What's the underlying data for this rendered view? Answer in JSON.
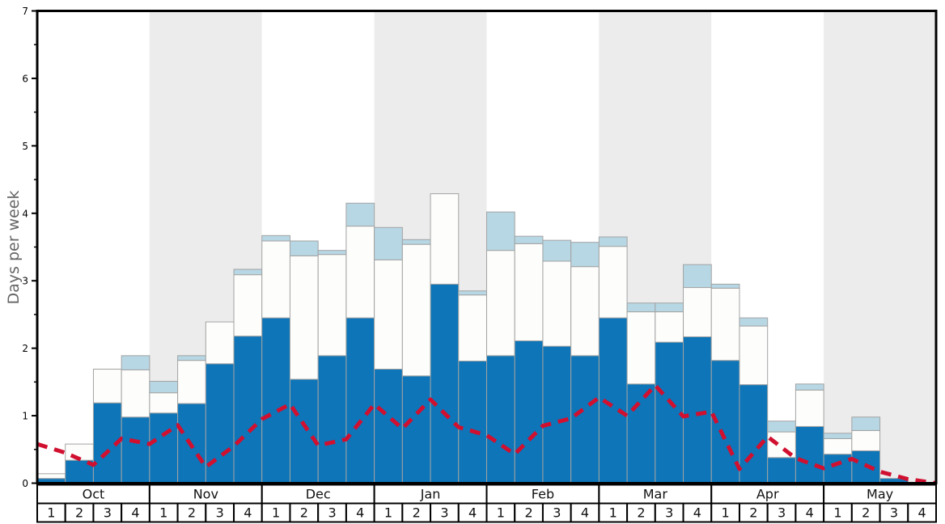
{
  "chart_data": {
    "type": "bar",
    "stacked": true,
    "title": "",
    "ylabel": "Days per week",
    "ylim": [
      0,
      7
    ],
    "y_major_ticks": [
      0,
      1,
      2,
      3,
      4,
      5,
      6,
      7
    ],
    "y_minor_tick_step": 0.5,
    "grid": false,
    "legend_position": "none",
    "months": [
      "Oct",
      "Nov",
      "Dec",
      "Jan",
      "Feb",
      "Mar",
      "Apr",
      "May"
    ],
    "weeks_per_month": 4,
    "week_numbers": [
      "1",
      "2",
      "3",
      "4"
    ],
    "categories": [
      "Oct w1",
      "Oct w2",
      "Oct w3",
      "Oct w4",
      "Nov w1",
      "Nov w2",
      "Nov w3",
      "Nov w4",
      "Dec w1",
      "Dec w2",
      "Dec w3",
      "Dec w4",
      "Jan w1",
      "Jan w2",
      "Jan w3",
      "Jan w4",
      "Feb w1",
      "Feb w2",
      "Feb w3",
      "Feb w4",
      "Mar w1",
      "Mar w2",
      "Mar w3",
      "Mar w4",
      "Apr w1",
      "Apr w2",
      "Apr w3",
      "Apr w4",
      "May w1",
      "May w2",
      "May w3",
      "May w4"
    ],
    "series": [
      {
        "name": "dark-blue-bottom-segment",
        "color": "#0d75b8",
        "values": [
          0.07,
          0.34,
          1.19,
          0.98,
          1.04,
          1.18,
          1.77,
          2.18,
          2.45,
          1.54,
          1.89,
          2.45,
          1.69,
          1.59,
          2.95,
          1.81,
          1.89,
          2.11,
          2.03,
          1.89,
          2.45,
          1.47,
          2.09,
          2.17,
          1.82,
          1.46,
          0.38,
          0.84,
          0.43,
          0.48,
          0.07,
          0
        ]
      },
      {
        "name": "white-middle-segment",
        "color": "#fdfdfb",
        "values": [
          0.07,
          0.24,
          0.5,
          0.7,
          0.3,
          0.64,
          0.62,
          0.91,
          1.14,
          1.83,
          1.5,
          1.36,
          1.62,
          1.95,
          1.34,
          0.98,
          1.56,
          1.44,
          1.26,
          1.32,
          1.06,
          1.07,
          0.45,
          0.73,
          1.07,
          0.87,
          0.38,
          0.54,
          0.23,
          0.3,
          0,
          0
        ]
      },
      {
        "name": "light-blue-top-segment",
        "color": "#b7d7e4",
        "values": [
          0,
          0,
          0,
          0.21,
          0.17,
          0.07,
          0,
          0.08,
          0.08,
          0.22,
          0.06,
          0.34,
          0.48,
          0.07,
          0,
          0.06,
          0.57,
          0.11,
          0.31,
          0.36,
          0.14,
          0.13,
          0.13,
          0.34,
          0.06,
          0.12,
          0.16,
          0.09,
          0.08,
          0.2,
          0,
          0
        ]
      }
    ],
    "line": {
      "name": "red-dashed-line",
      "color": "#d11030",
      "style": "dashed",
      "points_at": "week-boundaries",
      "values": [
        0.58,
        0.45,
        0.27,
        0.66,
        0.58,
        0.86,
        0.24,
        0.55,
        0.95,
        1.17,
        0.56,
        0.65,
        1.17,
        0.81,
        1.24,
        0.83,
        0.71,
        0.43,
        0.85,
        0.96,
        1.27,
        1.0,
        1.45,
        0.99,
        1.06,
        0.21,
        0.69,
        0.37,
        0.22,
        0.36,
        0.17,
        0.06,
        0.0
      ]
    },
    "colors": {
      "bar_border": "#a3a3a3",
      "axis": "#000000",
      "tick_label": "#000000",
      "month_week_text": "#111111",
      "ylabel_color": "#666666",
      "band_fills": [
        "#ffffff",
        "#ececec"
      ],
      "table_fill": "#ffffff"
    }
  }
}
